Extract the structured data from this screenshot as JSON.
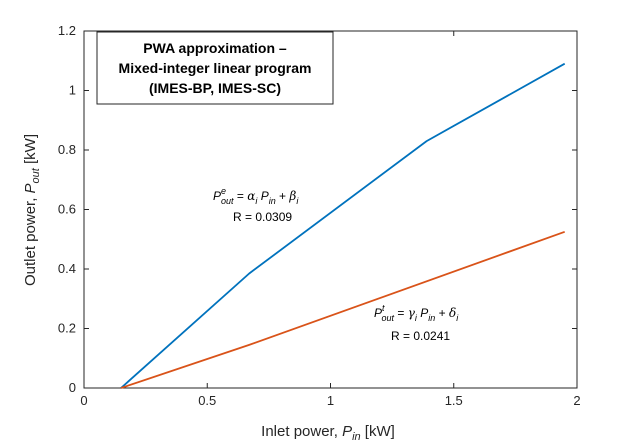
{
  "chart_data": {
    "type": "line",
    "title": "",
    "xlim": [
      0,
      2
    ],
    "ylim": [
      0,
      1.2
    ],
    "x_ticks": [
      "0",
      "0.5",
      "1",
      "1.5",
      "2"
    ],
    "y_ticks": [
      "0",
      "0.2",
      "0.4",
      "0.6",
      "0.8",
      "1",
      "1.2"
    ],
    "xlabel": {
      "main": "Inlet power, ",
      "var": "P",
      "sub": "in",
      "unit": " [kW]"
    },
    "ylabel": {
      "main": "Outlet power, ",
      "var": "P",
      "sub": "out",
      "unit": " [kW]"
    },
    "legend_box": {
      "lines": [
        "PWA approximation –",
        "Mixed-integer linear program",
        "(IMES-BP, IMES-SC)"
      ],
      "placement": "top-left"
    },
    "series": [
      {
        "color": "#0072BD",
        "x": [
          0.15,
          0.67,
          1.39,
          1.95
        ],
        "y": [
          0.0,
          0.385,
          0.83,
          1.09
        ],
        "annotation": {
          "eq_lhs_var": "P",
          "eq_lhs_sup": "e",
          "eq_lhs_sub": "out",
          "eq_coef": "α",
          "eq_coef_sub": "i",
          "eq_mid_var": "P",
          "eq_mid_sub": "in",
          "eq_const": "β",
          "eq_const_sub": "i",
          "r_text": "R = 0.0309"
        }
      },
      {
        "color": "#D95319",
        "x": [
          0.15,
          0.67,
          1.95
        ],
        "y": [
          0.0,
          0.145,
          0.525
        ],
        "annotation": {
          "eq_lhs_var": "P",
          "eq_lhs_sup": "t",
          "eq_lhs_sub": "out",
          "eq_coef": "γ",
          "eq_coef_sub": "i",
          "eq_mid_var": "P",
          "eq_mid_sub": "in",
          "eq_const": "δ",
          "eq_const_sub": "i",
          "r_text": "R = 0.0241"
        }
      }
    ]
  }
}
